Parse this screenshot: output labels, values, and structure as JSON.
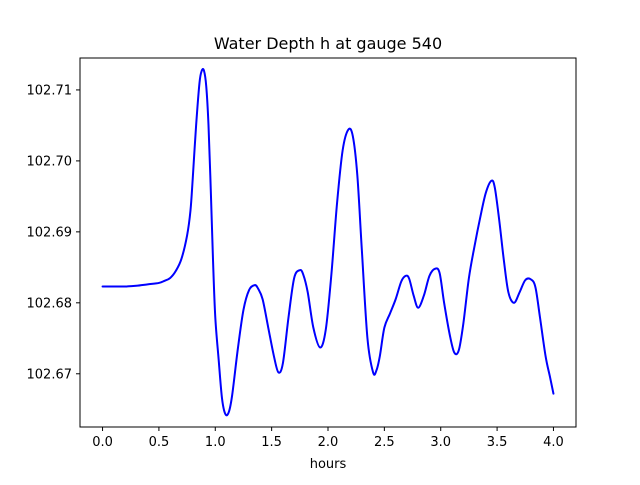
{
  "chart_data": {
    "type": "line",
    "title": "Water Depth h at gauge 540",
    "xlabel": "hours",
    "ylabel": "",
    "xlim": [
      -0.2,
      4.2
    ],
    "ylim": [
      102.6625,
      102.7145
    ],
    "grid": false,
    "legend": "none",
    "xticks": [
      0.0,
      0.5,
      1.0,
      1.5,
      2.0,
      2.5,
      3.0,
      3.5,
      4.0
    ],
    "xtick_labels": [
      "0.0",
      "0.5",
      "1.0",
      "1.5",
      "2.0",
      "2.5",
      "3.0",
      "3.5",
      "4.0"
    ],
    "yticks": [
      102.67,
      102.68,
      102.69,
      102.7,
      102.71
    ],
    "ytick_labels": [
      "102.67",
      "102.68",
      "102.69",
      "102.70",
      "102.71"
    ],
    "series": [
      {
        "color": "#0000ff",
        "x": [
          0.0,
          0.1,
          0.2,
          0.3,
          0.4,
          0.5,
          0.55,
          0.6,
          0.65,
          0.7,
          0.75,
          0.78,
          0.8,
          0.83,
          0.86,
          0.88,
          0.9,
          0.92,
          0.94,
          0.96,
          0.98,
          1.0,
          1.03,
          1.06,
          1.09,
          1.12,
          1.15,
          1.2,
          1.25,
          1.3,
          1.35,
          1.38,
          1.42,
          1.47,
          1.52,
          1.56,
          1.6,
          1.65,
          1.7,
          1.75,
          1.78,
          1.82,
          1.87,
          1.93,
          1.98,
          2.03,
          2.08,
          2.13,
          2.18,
          2.22,
          2.26,
          2.3,
          2.35,
          2.4,
          2.43,
          2.46,
          2.5,
          2.55,
          2.6,
          2.65,
          2.69,
          2.72,
          2.76,
          2.8,
          2.85,
          2.9,
          2.95,
          2.99,
          3.03,
          3.08,
          3.12,
          3.16,
          3.2,
          3.25,
          3.3,
          3.35,
          3.4,
          3.45,
          3.48,
          3.52,
          3.56,
          3.6,
          3.65,
          3.7,
          3.75,
          3.8,
          3.84,
          3.88,
          3.93,
          3.97,
          4.0
        ],
        "y": [
          102.6823,
          102.6823,
          102.6823,
          102.6824,
          102.6826,
          102.6828,
          102.6831,
          102.6835,
          102.6845,
          102.6862,
          102.6895,
          102.693,
          102.6975,
          102.705,
          102.711,
          102.7127,
          102.7127,
          102.7105,
          102.705,
          102.696,
          102.686,
          102.678,
          102.672,
          102.6665,
          102.6643,
          102.6646,
          102.667,
          102.6735,
          102.679,
          102.6818,
          102.6825,
          102.682,
          102.6805,
          102.6765,
          102.6725,
          102.6702,
          102.6715,
          102.678,
          102.6835,
          102.6846,
          102.684,
          102.6815,
          102.6765,
          102.6737,
          102.6762,
          102.684,
          102.694,
          102.7015,
          102.7044,
          102.7035,
          102.698,
          102.6875,
          102.675,
          102.6702,
          102.6705,
          102.6725,
          102.6765,
          102.6785,
          102.6805,
          102.683,
          102.6838,
          102.6834,
          102.681,
          102.6793,
          102.681,
          102.6838,
          102.6848,
          102.6842,
          102.68,
          102.6755,
          102.673,
          102.6733,
          102.677,
          102.6835,
          102.688,
          102.692,
          102.6955,
          102.6972,
          102.6962,
          102.6915,
          102.686,
          102.6815,
          102.68,
          102.6815,
          102.6832,
          102.6833,
          102.6822,
          102.678,
          102.6725,
          102.6695,
          102.6672
        ]
      }
    ]
  }
}
